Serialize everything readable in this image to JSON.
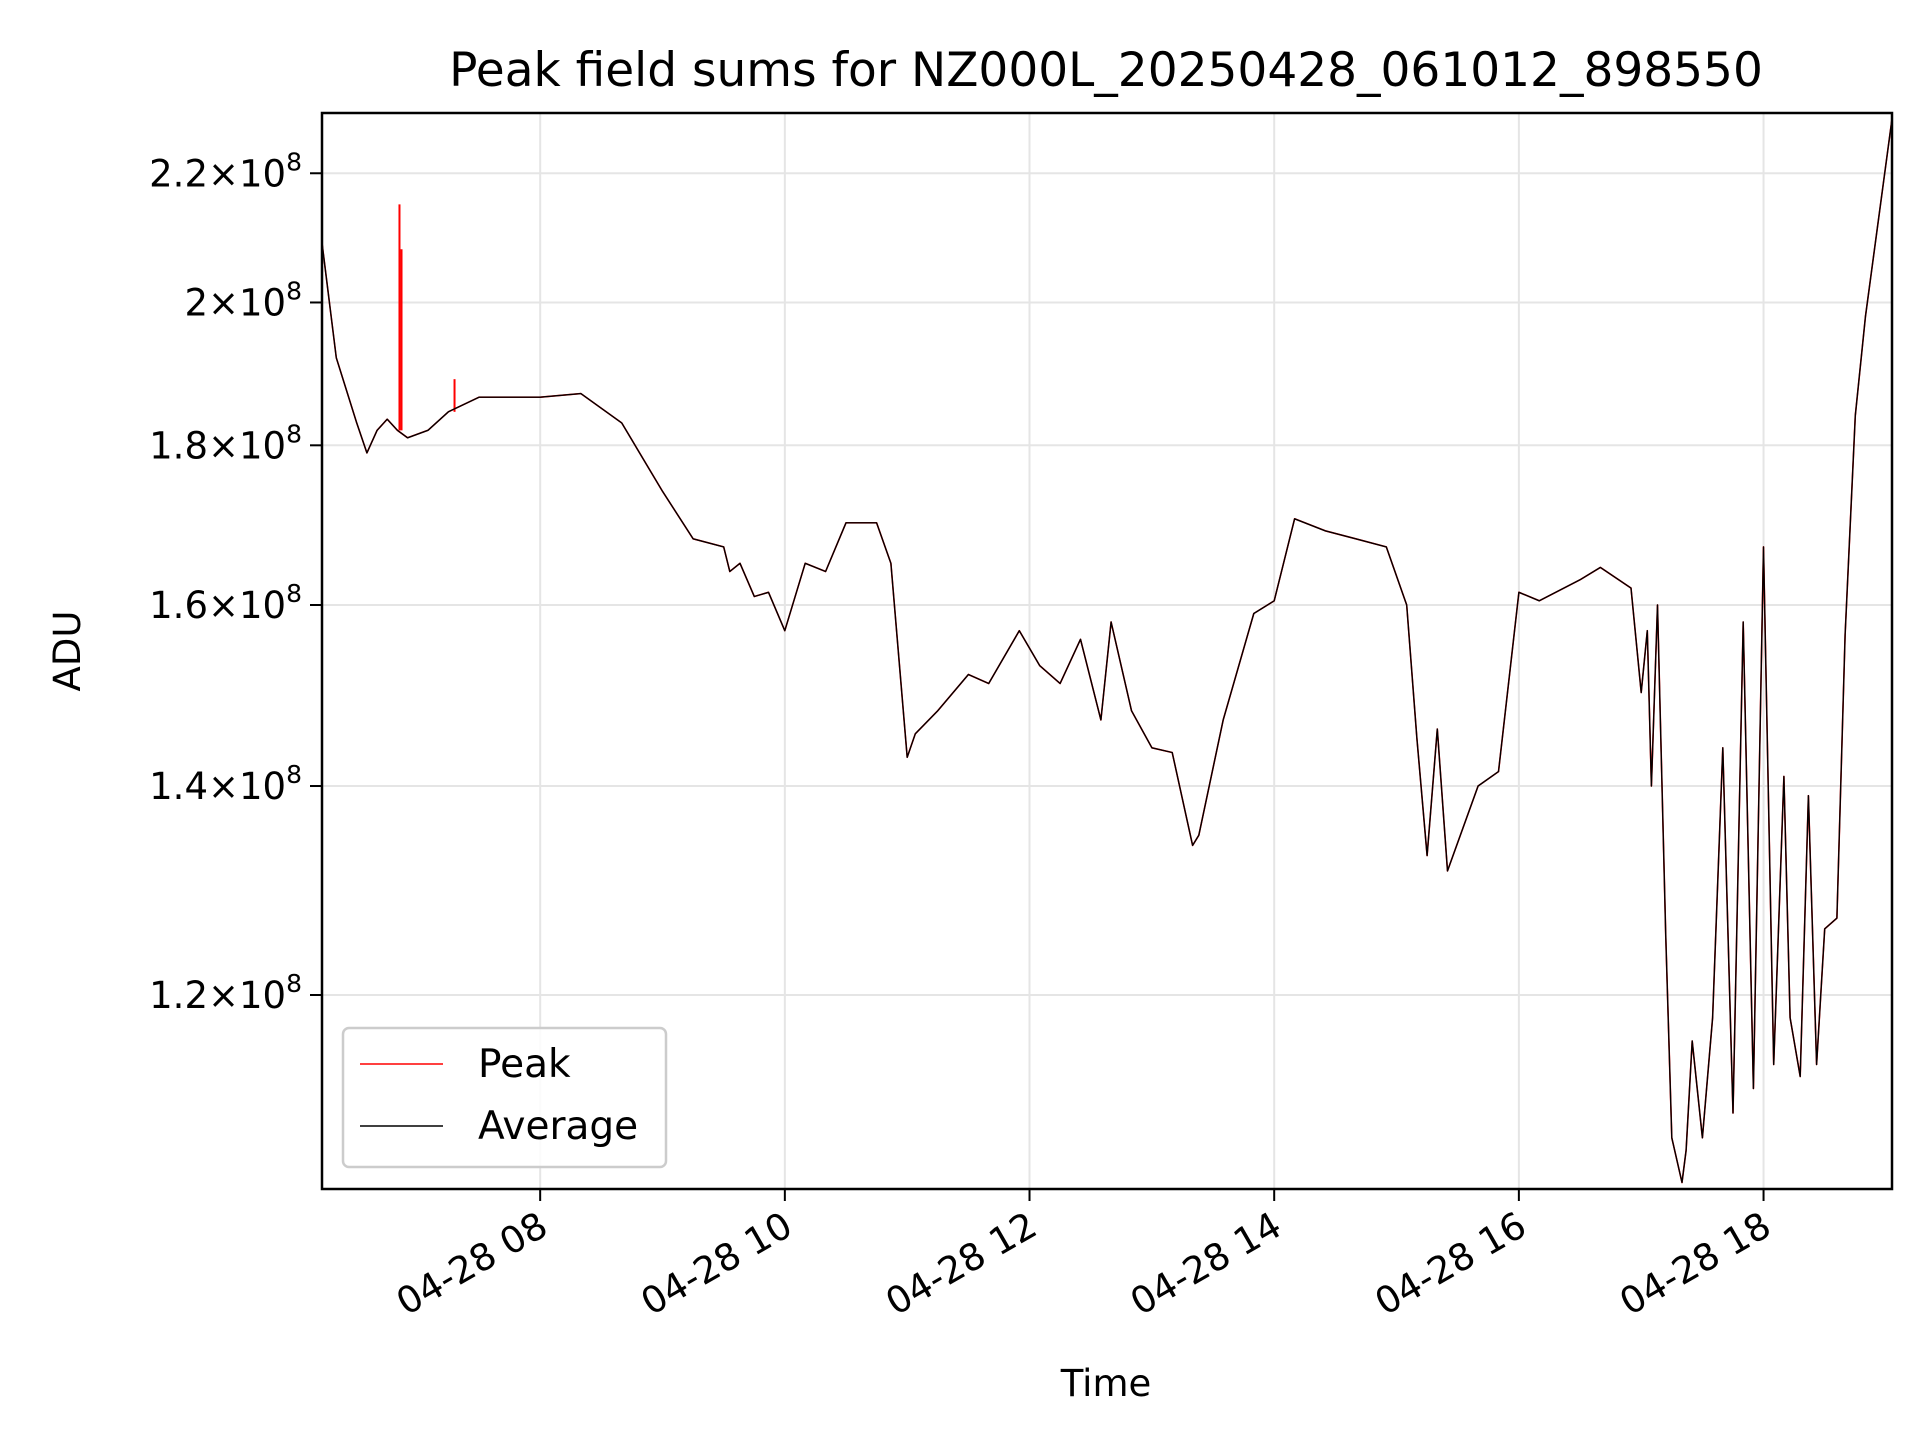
{
  "chart_data": {
    "type": "line",
    "title": "Peak field sums for NZ000L_20250428_061012_898550",
    "xlabel": "Time",
    "ylabel": "ADU",
    "y_scale": "log",
    "xlim": [
      "2025-04-28 06:13",
      "2025-04-28 19:03"
    ],
    "ylim": [
      104000000,
      230000000
    ],
    "grid": true,
    "legend_position": "lower-left",
    "x_ticks": [
      {
        "value": "2025-04-28 08:00",
        "label": "04-28 08"
      },
      {
        "value": "2025-04-28 10:00",
        "label": "04-28 10"
      },
      {
        "value": "2025-04-28 12:00",
        "label": "04-28 12"
      },
      {
        "value": "2025-04-28 14:00",
        "label": "04-28 14"
      },
      {
        "value": "2025-04-28 16:00",
        "label": "04-28 16"
      },
      {
        "value": "2025-04-28 18:00",
        "label": "04-28 18"
      }
    ],
    "y_ticks": [
      {
        "value": 120000000,
        "mantissa": "1.2",
        "base": "10",
        "exp": "8"
      },
      {
        "value": 140000000,
        "mantissa": "1.4",
        "base": "10",
        "exp": "8"
      },
      {
        "value": 160000000,
        "mantissa": "1.6",
        "base": "10",
        "exp": "8"
      },
      {
        "value": 180000000,
        "mantissa": "1.8",
        "base": "10",
        "exp": "8"
      },
      {
        "value": 200000000,
        "mantissa": "2",
        "base": "10",
        "exp": "8"
      },
      {
        "value": 220000000,
        "mantissa": "2.2",
        "base": "10",
        "exp": "8"
      }
    ],
    "series": [
      {
        "name": "Peak",
        "color": "#ff0000",
        "spikes": [
          {
            "x": "2025-04-28 06:51",
            "y": 215000000
          },
          {
            "x": "2025-04-28 06:52",
            "y": 208000000
          },
          {
            "x": "2025-04-28 07:18",
            "y": 189000000
          }
        ]
      },
      {
        "name": "Average",
        "color": "#000000",
        "x": [
          "2025-04-28 06:13",
          "2025-04-28 06:20",
          "2025-04-28 06:30",
          "2025-04-28 06:35",
          "2025-04-28 06:40",
          "2025-04-28 06:45",
          "2025-04-28 06:50",
          "2025-04-28 06:55",
          "2025-04-28 07:05",
          "2025-04-28 07:15",
          "2025-04-28 07:30",
          "2025-04-28 08:00",
          "2025-04-28 08:20",
          "2025-04-28 08:40",
          "2025-04-28 09:00",
          "2025-04-28 09:15",
          "2025-04-28 09:30",
          "2025-04-28 09:33",
          "2025-04-28 09:38",
          "2025-04-28 09:45",
          "2025-04-28 09:52",
          "2025-04-28 10:00",
          "2025-04-28 10:10",
          "2025-04-28 10:20",
          "2025-04-28 10:30",
          "2025-04-28 10:45",
          "2025-04-28 10:52",
          "2025-04-28 11:00",
          "2025-04-28 11:04",
          "2025-04-28 11:15",
          "2025-04-28 11:30",
          "2025-04-28 11:40",
          "2025-04-28 11:55",
          "2025-04-28 12:05",
          "2025-04-28 12:15",
          "2025-04-28 12:25",
          "2025-04-28 12:35",
          "2025-04-28 12:40",
          "2025-04-28 12:50",
          "2025-04-28 13:00",
          "2025-04-28 13:10",
          "2025-04-28 13:20",
          "2025-04-28 13:23",
          "2025-04-28 13:35",
          "2025-04-28 13:50",
          "2025-04-28 14:00",
          "2025-04-28 14:10",
          "2025-04-28 14:25",
          "2025-04-28 14:40",
          "2025-04-28 14:55",
          "2025-04-28 15:05",
          "2025-04-28 15:10",
          "2025-04-28 15:15",
          "2025-04-28 15:20",
          "2025-04-28 15:25",
          "2025-04-28 15:40",
          "2025-04-28 15:50",
          "2025-04-28 16:00",
          "2025-04-28 16:10",
          "2025-04-28 16:30",
          "2025-04-28 16:40",
          "2025-04-28 16:55",
          "2025-04-28 17:00",
          "2025-04-28 17:03",
          "2025-04-28 17:05",
          "2025-04-28 17:08",
          "2025-04-28 17:12",
          "2025-04-28 17:15",
          "2025-04-28 17:20",
          "2025-04-28 17:22",
          "2025-04-28 17:25",
          "2025-04-28 17:30",
          "2025-04-28 17:35",
          "2025-04-28 17:40",
          "2025-04-28 17:45",
          "2025-04-28 17:50",
          "2025-04-28 17:55",
          "2025-04-28 18:00",
          "2025-04-28 18:05",
          "2025-04-28 18:10",
          "2025-04-28 18:13",
          "2025-04-28 18:18",
          "2025-04-28 18:22",
          "2025-04-28 18:26",
          "2025-04-28 18:30",
          "2025-04-28 18:33",
          "2025-04-28 18:36",
          "2025-04-28 18:40",
          "2025-04-28 18:45",
          "2025-04-28 18:50",
          "2025-04-28 19:03"
        ],
        "y": [
          209000000,
          192000000,
          183000000,
          179000000,
          182000000,
          183500000,
          182000000,
          181000000,
          182000000,
          184500000,
          186500000,
          186500000,
          187000000,
          183000000,
          174000000,
          168000000,
          167000000,
          164000000,
          165000000,
          161000000,
          161500000,
          157000000,
          165000000,
          164000000,
          170000000,
          170000000,
          165000000,
          143000000,
          145500000,
          148000000,
          152000000,
          151000000,
          157000000,
          153000000,
          151000000,
          156000000,
          147000000,
          158000000,
          148000000,
          144000000,
          143500000,
          134000000,
          135000000,
          147000000,
          159000000,
          160500000,
          170500000,
          169000000,
          168000000,
          167000000,
          160000000,
          145000000,
          133000000,
          146000000,
          131500000,
          140000000,
          141500000,
          161500000,
          160500000,
          163000000,
          164500000,
          162000000,
          150000000,
          157000000,
          140000000,
          160000000,
          125500000,
          108000000,
          104500000,
          107000000,
          116000000,
          108000000,
          118000000,
          144000000,
          110000000,
          158000000,
          112000000,
          167000000,
          114000000,
          141000000,
          118000000,
          113000000,
          139000000,
          114000000,
          126000000,
          126500000,
          127000000,
          156500000,
          184000000,
          198000000,
          229000000
        ]
      }
    ]
  }
}
